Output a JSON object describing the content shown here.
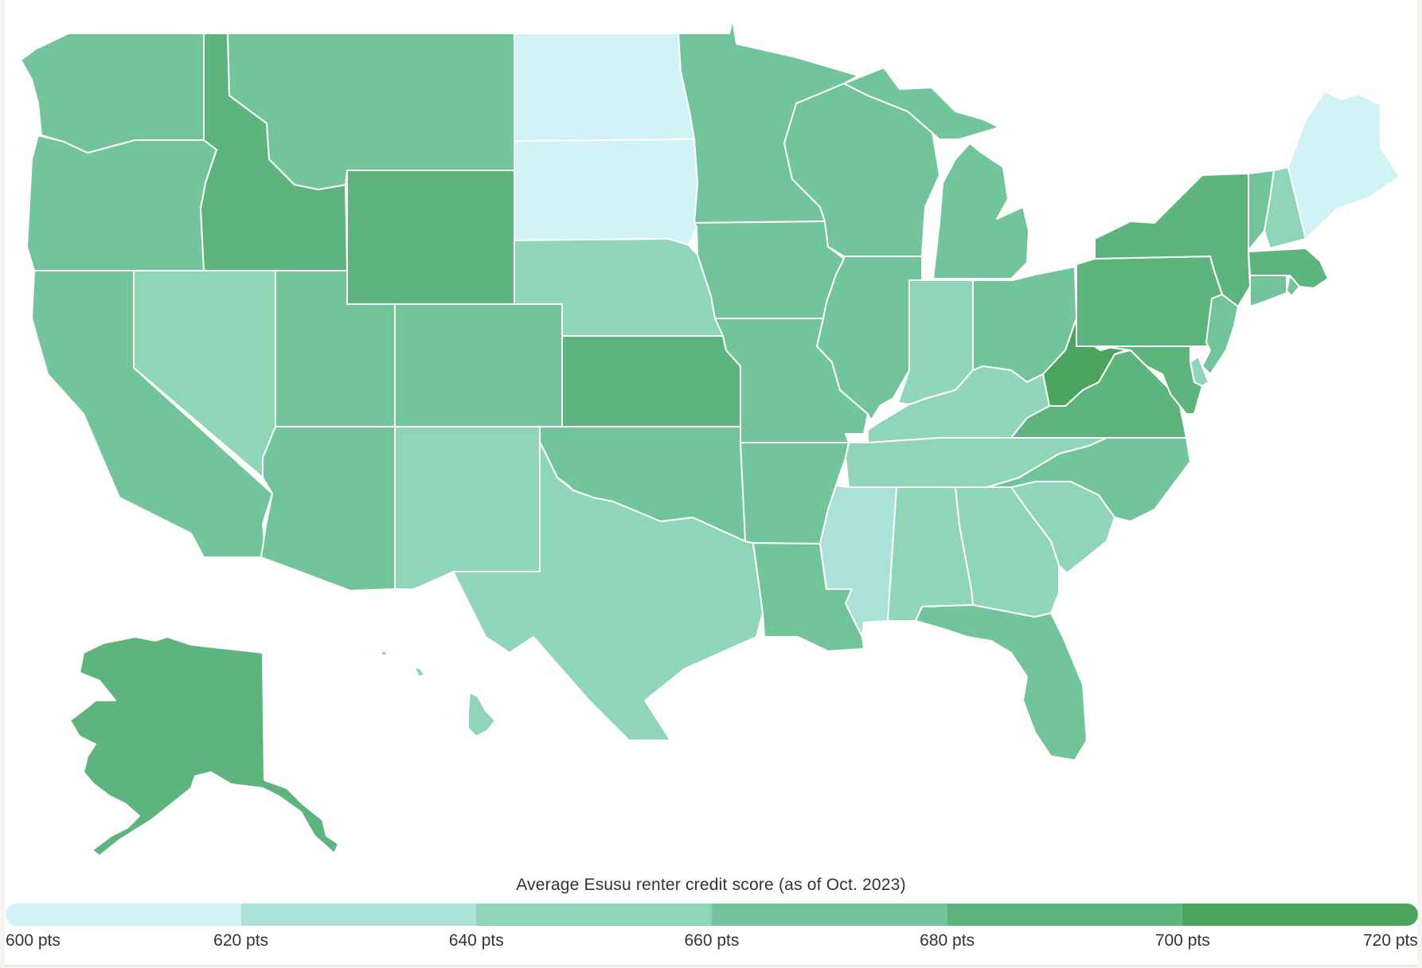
{
  "legend": {
    "title": "Average Esusu renter credit score (as of Oct. 2023)",
    "bins": [
      {
        "from": 600,
        "to": 620,
        "color": "#d1f3f6"
      },
      {
        "from": 620,
        "to": 640,
        "color": "#abe2d8"
      },
      {
        "from": 640,
        "to": 660,
        "color": "#8fd5b8"
      },
      {
        "from": 660,
        "to": 680,
        "color": "#72c49a"
      },
      {
        "from": 680,
        "to": 700,
        "color": "#5db47d"
      },
      {
        "from": 700,
        "to": 720,
        "color": "#4ca55f"
      }
    ],
    "labels": [
      "600 pts",
      "620 pts",
      "640 pts",
      "660 pts",
      "680 pts",
      "700 pts",
      "720 pts"
    ]
  },
  "states": [
    {
      "id": "WA",
      "bin": 3
    },
    {
      "id": "OR",
      "bin": 3
    },
    {
      "id": "CA",
      "bin": 3
    },
    {
      "id": "ID",
      "bin": 4
    },
    {
      "id": "NV",
      "bin": 2
    },
    {
      "id": "MT",
      "bin": 3
    },
    {
      "id": "WY",
      "bin": 4
    },
    {
      "id": "UT",
      "bin": 3
    },
    {
      "id": "CO",
      "bin": 3
    },
    {
      "id": "AZ",
      "bin": 3
    },
    {
      "id": "NM",
      "bin": 2
    },
    {
      "id": "ND",
      "bin": 0
    },
    {
      "id": "SD",
      "bin": 0
    },
    {
      "id": "NE",
      "bin": 2
    },
    {
      "id": "KS",
      "bin": 4
    },
    {
      "id": "OK",
      "bin": 3
    },
    {
      "id": "TX",
      "bin": 2
    },
    {
      "id": "MN",
      "bin": 3
    },
    {
      "id": "IA",
      "bin": 3
    },
    {
      "id": "MO",
      "bin": 3
    },
    {
      "id": "AR",
      "bin": 3
    },
    {
      "id": "LA",
      "bin": 3
    },
    {
      "id": "WI",
      "bin": 3
    },
    {
      "id": "IL",
      "bin": 3
    },
    {
      "id": "MI",
      "bin": 3
    },
    {
      "id": "IN",
      "bin": 2
    },
    {
      "id": "OH",
      "bin": 3
    },
    {
      "id": "KY",
      "bin": 2
    },
    {
      "id": "TN",
      "bin": 2
    },
    {
      "id": "MS",
      "bin": 1
    },
    {
      "id": "AL",
      "bin": 2
    },
    {
      "id": "GA",
      "bin": 2
    },
    {
      "id": "FL",
      "bin": 3
    },
    {
      "id": "SC",
      "bin": 2
    },
    {
      "id": "NC",
      "bin": 3
    },
    {
      "id": "VA",
      "bin": 4
    },
    {
      "id": "WV",
      "bin": 5
    },
    {
      "id": "PA",
      "bin": 4
    },
    {
      "id": "NY",
      "bin": 4
    },
    {
      "id": "VT",
      "bin": 3
    },
    {
      "id": "NH",
      "bin": 2
    },
    {
      "id": "ME",
      "bin": 0
    },
    {
      "id": "MA",
      "bin": 4
    },
    {
      "id": "RI",
      "bin": 3
    },
    {
      "id": "CT",
      "bin": 3
    },
    {
      "id": "NJ",
      "bin": 3
    },
    {
      "id": "DE",
      "bin": 2
    },
    {
      "id": "MD",
      "bin": 4
    },
    {
      "id": "AK",
      "bin": 4
    },
    {
      "id": "HI",
      "bin": 2
    }
  ]
}
